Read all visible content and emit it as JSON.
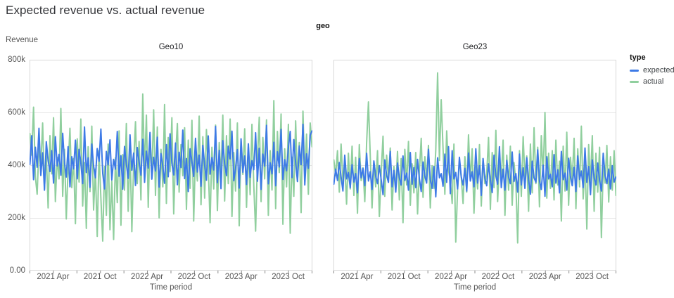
{
  "header": {
    "title": "Expected revenue vs. actual revenue"
  },
  "legend": {
    "title": "type",
    "items": [
      {
        "label": "expected",
        "color": "#3d7ae6"
      },
      {
        "label": "actual",
        "color": "#90cf9e"
      }
    ]
  },
  "chart_data": {
    "type": "line",
    "title": "Expected revenue vs. actual revenue",
    "facet_field": "geo",
    "ylabel": "Revenue",
    "xlabel": "Time period",
    "ylim": [
      0,
      800000
    ],
    "value_unit": "thousands",
    "grid": true,
    "legend_position": "right",
    "y_ticks": [
      {
        "value": 0,
        "label": "0.00"
      },
      {
        "value": 200,
        "label": "200k"
      },
      {
        "value": 400,
        "label": "400k"
      },
      {
        "value": 600,
        "label": "600k"
      },
      {
        "value": 800,
        "label": "800k"
      }
    ],
    "x_domain_months": 36,
    "x_minor_tick_every_months": 3,
    "x_ticks_labeled": [
      {
        "month": 3,
        "label": "2021 Apr"
      },
      {
        "month": 9,
        "label": "2021 Oct"
      },
      {
        "month": 15,
        "label": "2022 Apr"
      },
      {
        "month": 21,
        "label": "2022 Oct"
      },
      {
        "month": 27,
        "label": "2023 Apr"
      },
      {
        "month": 33,
        "label": "2023 Oct"
      }
    ],
    "sampling": "weekly points, Jan 2021 - Dec 2023, values estimated from gridlines in thousands",
    "panels": [
      {
        "title": "Geo10",
        "series": [
          {
            "name": "expected",
            "color": "#3d7ae6",
            "values_k": [
              403,
              512,
              345,
              468,
              392,
              540,
              361,
              447,
              305,
              489,
              418,
              376,
              455,
              332,
              508,
              397,
              441,
              362,
              521,
              408,
              355,
              470,
              318,
              432,
              386,
              495,
              348,
              460,
              410,
              330,
              545,
              372,
              428,
              316,
              480,
              398,
              352,
              463,
              415,
              537,
              369,
              310,
              452,
              401,
              496,
              344,
              422,
              385,
              528,
              358,
              436,
              309,
              471,
              404,
              350,
              515,
              381,
              446,
              323,
              467,
              412,
              362,
              498,
              335,
              453,
              389,
              524,
              347,
              430,
              378,
              506,
              317,
              444,
              395,
              331,
              478,
              356,
              519,
              407,
              363,
              484,
              326,
              449,
              391,
              533,
              349,
              425,
              300,
              462,
              413,
              357,
              502,
              374,
              438,
              320,
              475,
              399,
              343,
              511,
              366,
              429,
              382,
              547,
              334,
              456,
              311,
              493,
              405,
              360,
              472,
              424,
              529,
              341,
              387,
              459,
              313,
              500,
              373,
              435,
              327,
              481,
              354,
              417,
              383,
              523,
              339,
              464,
              308,
              442,
              396,
              551,
              329,
              409,
              367,
              487,
              322,
              451,
              393,
              536,
              346,
              421,
              379,
              466,
              528,
              353,
              497,
              411,
              338,
              473,
              402,
              555,
              325,
              443,
              388,
              514,
              530
            ]
          },
          {
            "name": "actual",
            "color": "#90cf9e",
            "values_k": [
              520,
              438,
              620,
              355,
              290,
              472,
              398,
              560,
              310,
              445,
              238,
              512,
              367,
              580,
              262,
              430,
              348,
              615,
              282,
              460,
              196,
              390,
              540,
              315,
              425,
              178,
              500,
              336,
              575,
              245,
              410,
              160,
              470,
              300,
              548,
              230,
              385,
              130,
              455,
              275,
              112,
              395,
              210,
              480,
              155,
              340,
              118,
              428,
              258,
              530,
              172,
              440,
              305,
              558,
              225,
              470,
              148,
              410,
              565,
              330,
              490,
              268,
              670,
              380,
              590,
              240,
              515,
              350,
              610,
              285,
              545,
              200,
              460,
              318,
              630,
              255,
              505,
              375,
              580,
              215,
              435,
              558,
              298,
              478,
              360,
              542,
              232,
              495,
              312,
              570,
              188,
              452,
              340,
              586,
              250,
              508,
              275,
              535,
              395,
              182,
              468,
              310,
              552,
              228,
              486,
              356,
              590,
              264,
              512,
              330,
              575,
              205,
              448,
              302,
              560,
              170,
              492,
              365,
              538,
              240,
              470,
              288,
              555,
              325,
              150,
              418,
              582,
              262,
              505,
              348,
              572,
              210,
              455,
              306,
              645,
              235,
              528,
              372,
              594,
              176,
              462,
              318,
              555,
              142,
              430,
              282,
              568,
              338,
              486,
              220,
              605,
              352,
              518,
              290,
              560,
              470
            ]
          }
        ]
      },
      {
        "title": "Geo23",
        "series": [
          {
            "name": "expected",
            "color": "#3d7ae6",
            "values_k": [
              328,
              385,
              342,
              410,
              355,
              302,
              438,
              348,
              372,
              315,
              402,
              336,
              368,
              295,
              425,
              352,
              388,
              322,
              445,
              340,
              375,
              308,
              416,
              358,
              330,
              398,
              345,
              288,
              420,
              362,
              335,
              452,
              318,
              380,
              298,
              408,
              352,
              325,
              435,
              342,
              370,
              305,
              448,
              328,
              392,
              315,
              422,
              348,
              300,
              412,
              358,
              332,
              460,
              345,
              312,
              395,
              280,
              428,
              352,
              368,
              320,
              442,
              335,
              470,
              292,
              455,
              348,
              372,
              310,
              430,
              356,
              325,
              388,
              302,
              446,
              340,
              375,
              318,
              462,
              332,
              398,
              285,
              425,
              350,
              322,
              405,
              345,
              296,
              438,
              360,
              328,
              470,
              315,
              385,
              305,
              418,
              355,
              330,
              450,
              338,
              368,
              298,
              442,
              325,
              390,
              312,
              428,
              345,
              290,
              415,
              352,
              335,
              458,
              342,
              308,
              400,
              282,
              432,
              348,
              365,
              318,
              440,
              332,
              382,
              295,
              452,
              345,
              370,
              305,
              426,
              358,
              322,
              392,
              300,
              435,
              346,
              378,
              315,
              465,
              335,
              395,
              288,
              420,
              352,
              325,
              408,
              342,
              302,
              445,
              362,
              330,
              385,
              310,
              398,
              336,
              355
            ]
          },
          {
            "name": "actual",
            "color": "#90cf9e",
            "values_k": [
              420,
              360,
              455,
              298,
              480,
              335,
              408,
              252,
              445,
              310,
              472,
              285,
              430,
              218,
              478,
              342,
              390,
              262,
              485,
              640,
              440,
              238,
              410,
              318,
              455,
              205,
              372,
              510,
              282,
              438,
              350,
              465,
              230,
              395,
              308,
              452,
              268,
              425,
              182,
              460,
              325,
              490,
              248,
              405,
              295,
              448,
              215,
              380,
              502,
              278,
              432,
              345,
              475,
              238,
              398,
              312,
              458,
              750,
              418,
              648,
              465,
              290,
              530,
              380,
              340,
              255,
              480,
              108,
              308,
              420,
              355,
              255,
              432,
              298,
              515,
              342,
              462,
              218,
              395,
              310,
              478,
              245,
              425,
              330,
              368,
              505,
              232,
              448,
              315,
              532,
              262,
              415,
              348,
              495,
              210,
              438,
              305,
              472,
              248,
              410,
              338,
              105,
              455,
              282,
              508,
              352,
              435,
              225,
              480,
              295,
              542,
              330,
              468,
              242,
              512,
              358,
              600,
              275,
              445,
              312,
              455,
              268,
              495,
              325,
              415,
              188,
              472,
              302,
              525,
              248,
              430,
              345,
              502,
              235,
              462,
              318,
              548,
              272,
              418,
              158,
              478,
              335,
              512,
              225,
              445,
              298,
              468,
              125,
              395,
              332,
              475,
              260,
              432,
              305,
              455,
              285
            ]
          }
        ]
      }
    ]
  }
}
